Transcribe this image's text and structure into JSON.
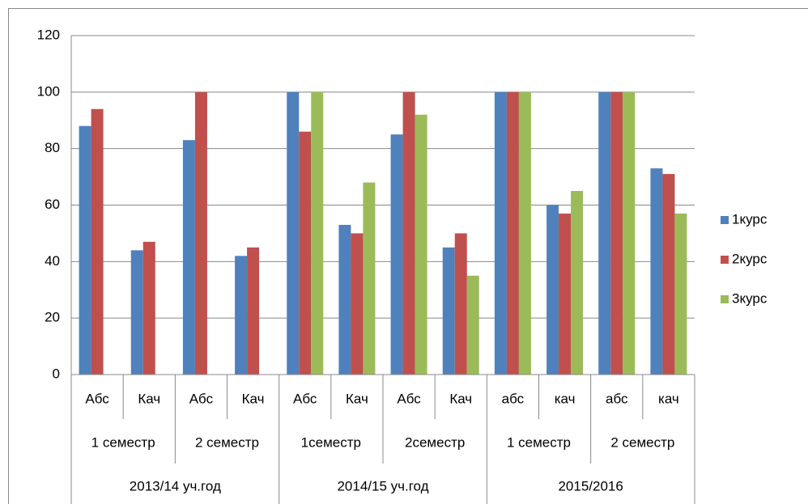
{
  "chart_data": {
    "type": "bar",
    "categories": [
      "Абс",
      "Кач",
      "Абс",
      "Кач",
      "Абс",
      "Кач",
      "Абс",
      "Кач",
      "абс",
      "кач",
      "абс",
      "кач"
    ],
    "semesters": [
      "1 семестр",
      "2 семестр",
      "1семестр",
      "2семестр",
      "1 семестр",
      "2 семестр"
    ],
    "years": [
      "2013/14 уч.год",
      "2014/15 уч.год",
      "2015/2016"
    ],
    "series": [
      {
        "name": "1курс",
        "color": "#4f81bd",
        "values": [
          88,
          44,
          83,
          42,
          100,
          53,
          85,
          45,
          100,
          60,
          100,
          73
        ]
      },
      {
        "name": "2курс",
        "color": "#c0504d",
        "values": [
          94,
          47,
          100,
          45,
          86,
          50,
          100,
          50,
          100,
          57,
          100,
          71
        ]
      },
      {
        "name": "3курс",
        "color": "#9bbb59",
        "values": [
          null,
          null,
          null,
          null,
          100,
          68,
          92,
          35,
          100,
          65,
          100,
          57
        ]
      }
    ],
    "ylim": [
      0,
      120
    ],
    "yticks": [
      0,
      20,
      40,
      60,
      80,
      100,
      120
    ],
    "grid": true,
    "legend": "right"
  }
}
